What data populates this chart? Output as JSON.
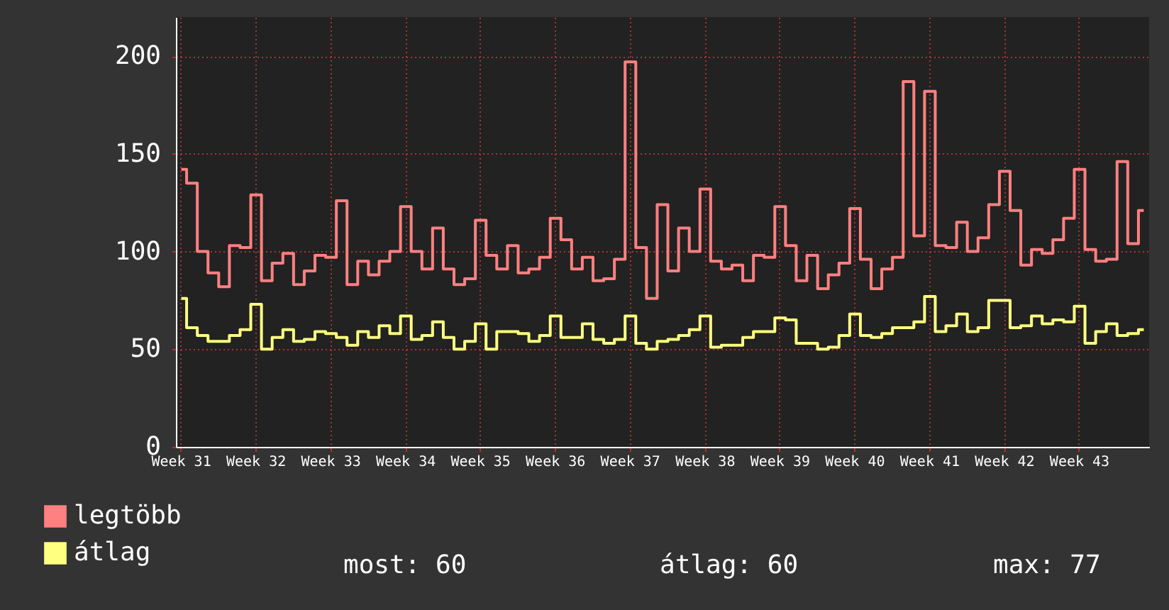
{
  "chart_data": {
    "type": "step",
    "categories": [
      "Week 31",
      null,
      null,
      null,
      null,
      null,
      null,
      "Week 32",
      null,
      null,
      null,
      null,
      null,
      null,
      "Week 33",
      null,
      null,
      null,
      null,
      null,
      null,
      "Week 34",
      null,
      null,
      null,
      null,
      null,
      null,
      "Week 35",
      null,
      null,
      null,
      null,
      null,
      null,
      "Week 36",
      null,
      null,
      null,
      null,
      null,
      null,
      "Week 37",
      null,
      null,
      null,
      null,
      null,
      null,
      "Week 38",
      null,
      null,
      null,
      null,
      null,
      null,
      "Week 39",
      null,
      null,
      null,
      null,
      null,
      null,
      "Week 40",
      null,
      null,
      null,
      null,
      null,
      null,
      "Week 41",
      null,
      null,
      null,
      null,
      null,
      null,
      "Week 42",
      null,
      null,
      null,
      null,
      null,
      null,
      "Week 43",
      null,
      null,
      null,
      null,
      null,
      null
    ],
    "series": [
      {
        "name": "legtöbb",
        "color": "#ff8080",
        "values": [
          142,
          135,
          100,
          89,
          82,
          103,
          102,
          129,
          85,
          94,
          99,
          83,
          90,
          98,
          97,
          126,
          83,
          95,
          88,
          95,
          100,
          123,
          100,
          91,
          112,
          91,
          83,
          86,
          116,
          98,
          91,
          103,
          89,
          91,
          97,
          117,
          106,
          91,
          97,
          85,
          86,
          96,
          197,
          102,
          76,
          124,
          90,
          112,
          100,
          132,
          95,
          91,
          93,
          85,
          98,
          97,
          123,
          103,
          85,
          98,
          81,
          88,
          94,
          122,
          96,
          81,
          91,
          97,
          187,
          108,
          182,
          103,
          102,
          115,
          100,
          107,
          124,
          141,
          121,
          93,
          101,
          99,
          106,
          117,
          142,
          101,
          95,
          96,
          146,
          104,
          121
        ]
      },
      {
        "name": "átlag",
        "color": "#ffff80",
        "values": [
          76,
          61,
          57,
          54,
          54,
          57,
          60,
          73,
          50,
          56,
          60,
          54,
          55,
          59,
          58,
          56,
          52,
          59,
          56,
          62,
          58,
          67,
          55,
          57,
          64,
          56,
          50,
          54,
          63,
          50,
          59,
          59,
          58,
          54,
          57,
          67,
          56,
          56,
          63,
          55,
          53,
          55,
          67,
          53,
          50,
          54,
          55,
          57,
          60,
          67,
          51,
          52,
          52,
          56,
          59,
          59,
          66,
          65,
          53,
          53,
          50,
          51,
          57,
          68,
          57,
          56,
          58,
          61,
          61,
          64,
          77,
          59,
          62,
          68,
          59,
          61,
          75,
          75,
          61,
          62,
          67,
          63,
          65,
          64,
          72,
          53,
          59,
          63,
          57,
          58,
          60
        ]
      }
    ],
    "ylim": [
      0,
      220
    ],
    "yticks": [
      0,
      50,
      100,
      150,
      200
    ],
    "grid": true,
    "legend": "bottom left",
    "annotations": [
      "most: 60",
      "átlag: 60",
      "max: 77"
    ]
  }
}
